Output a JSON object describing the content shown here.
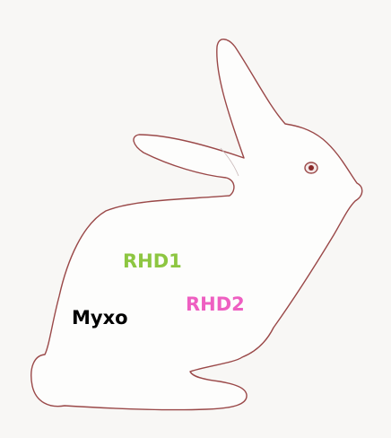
{
  "labels": [
    {
      "text": "RHD1"
    },
    {
      "text": "RHD2"
    },
    {
      "text": "Myxo"
    }
  ]
}
